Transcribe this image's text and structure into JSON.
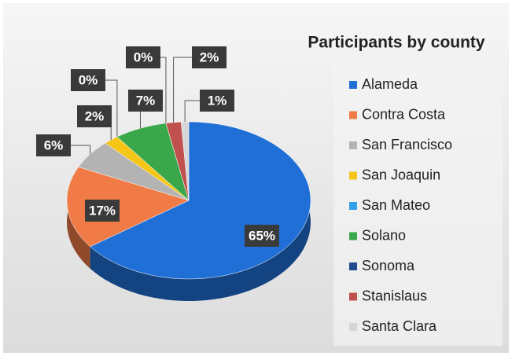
{
  "chart_data": {
    "type": "pie",
    "title": "Participants by county",
    "categories": [
      "Alameda",
      "Contra Costa",
      "San Francisco",
      "San Joaquin",
      "San Mateo",
      "Solano",
      "Sonoma",
      "Stanislaus",
      "Santa Clara"
    ],
    "values": [
      65,
      17,
      6,
      2,
      0,
      7,
      0,
      2,
      1
    ],
    "value_labels": [
      "65%",
      "17%",
      "6%",
      "2%",
      "0%",
      "7%",
      "0%",
      "2%",
      "1%"
    ],
    "colors": [
      "#1f6fd6",
      "#f07b47",
      "#b3b3b3",
      "#f5c518",
      "#33a0e8",
      "#3aa84a",
      "#1f4e8c",
      "#c0504d",
      "#d6d6d6"
    ],
    "legend": "right"
  }
}
